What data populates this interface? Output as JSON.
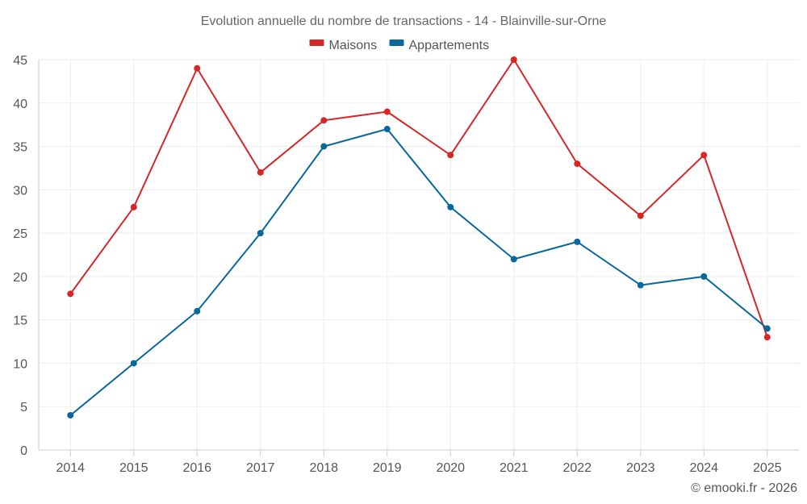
{
  "chart_data": {
    "type": "line",
    "title": "Evolution annuelle du nombre de transactions - 14 - Blainville-sur-Orne",
    "xlabel": "",
    "ylabel": "",
    "categories": [
      "2014",
      "2015",
      "2016",
      "2017",
      "2018",
      "2019",
      "2020",
      "2021",
      "2022",
      "2023",
      "2024",
      "2025"
    ],
    "ylim": [
      0,
      45
    ],
    "yticks": [
      0,
      5,
      10,
      15,
      20,
      25,
      30,
      35,
      40,
      45
    ],
    "grid": true,
    "legend_position": "top-center",
    "series": [
      {
        "name": "Maisons",
        "color": "#d62728",
        "values": [
          18,
          28,
          44,
          32,
          38,
          39,
          34,
          45,
          33,
          27,
          34,
          13
        ]
      },
      {
        "name": "Appartements",
        "color": "#08689c",
        "values": [
          4,
          10,
          16,
          25,
          35,
          37,
          28,
          22,
          24,
          19,
          20,
          14
        ]
      }
    ],
    "credit": "© emooki.fr - 2026"
  }
}
